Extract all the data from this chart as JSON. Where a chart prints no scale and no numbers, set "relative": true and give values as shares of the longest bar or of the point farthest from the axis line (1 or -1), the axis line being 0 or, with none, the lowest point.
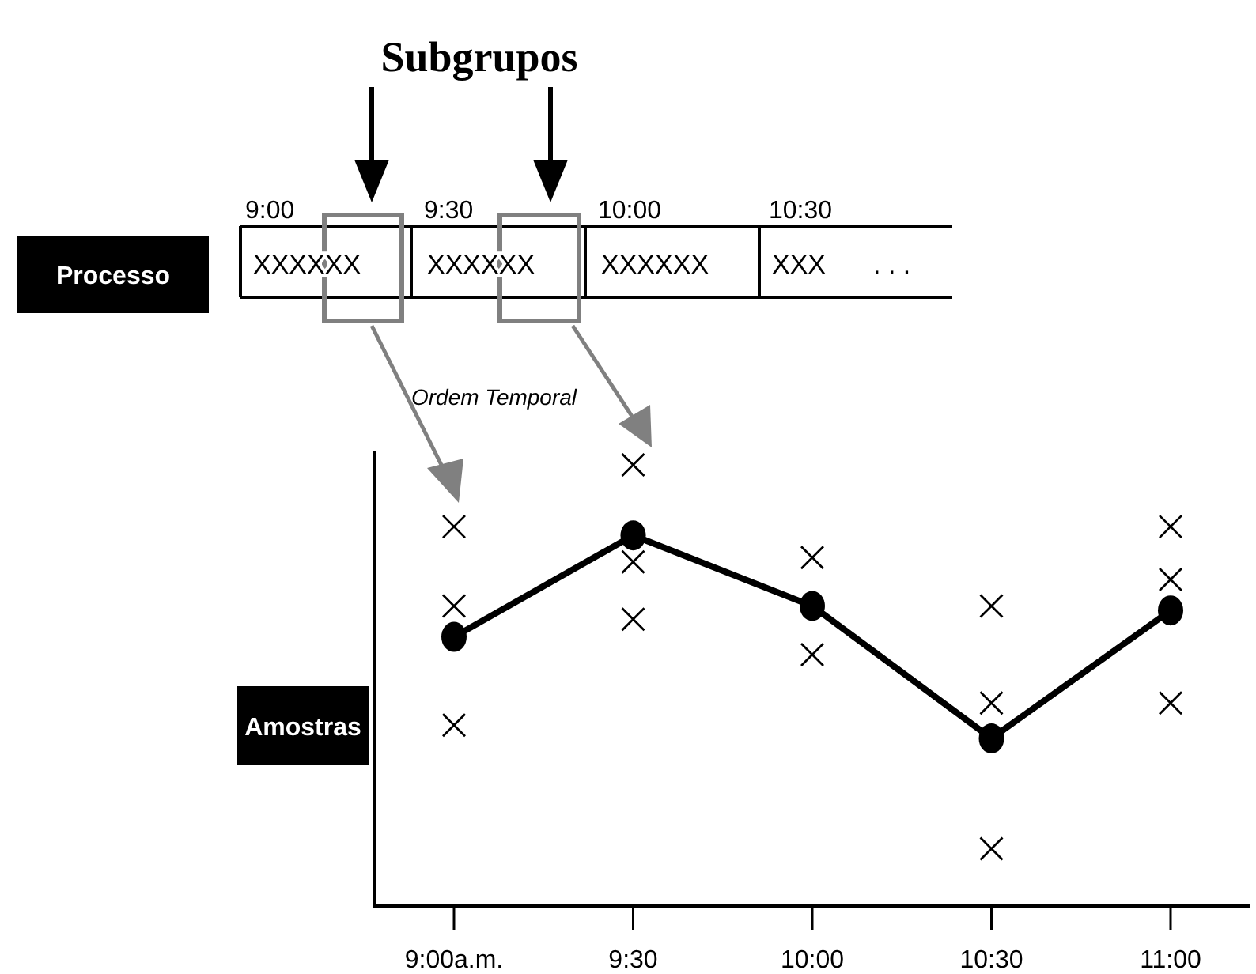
{
  "chart_data": {
    "type": "line",
    "title": "Subgrupos",
    "relative": true,
    "categories": [
      "9:00a.m.",
      "9:30",
      "10:00",
      "10:30",
      "11:00"
    ],
    "series": [
      {
        "type": "scatter",
        "color": "#000000",
        "marker": "cross",
        "x": [
          "9:00a.m.",
          "9:00a.m.",
          "9:00a.m.",
          "9:30",
          "9:30",
          "9:30",
          "10:00",
          "10:00",
          "10:30",
          "10:30",
          "10:30",
          "11:00",
          "11:00",
          "11:00"
        ],
        "values": [
          0.86,
          0.68,
          0.41,
          1,
          0.78,
          0.65,
          0.79,
          0.57,
          0.68,
          0.46,
          0.13,
          0.86,
          0.74,
          0.46
        ]
      },
      {
        "color": "#000000",
        "marker": "circle",
        "line_style": "solid",
        "values": [
          0.61,
          0.84,
          0.68,
          0.38,
          0.67
        ]
      }
    ],
    "annotations": [
      "Processo",
      "Amostras",
      "Ordem Temporal",
      "9:00",
      "9:30",
      "10:00",
      "10:30",
      "XXXXXX",
      "XXXXXX",
      "XXXXXX",
      "XXX",
      ". . ."
    ]
  }
}
